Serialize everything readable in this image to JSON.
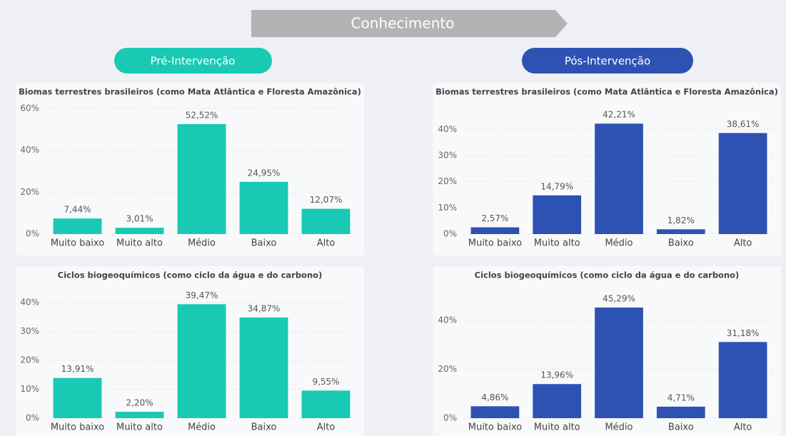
{
  "header": {
    "title": "Conhecimento",
    "pre_label": "Pré-Intervenção",
    "post_label": "Pós-Intervenção"
  },
  "chart_data": [
    {
      "type": "bar",
      "title": "Biomas terrestres brasileiros (como Mata Atlântica e Floresta Amazônica)",
      "categories": [
        "Muito baixo",
        "Muito alto",
        "Médio",
        "Baixo",
        "Alto"
      ],
      "values": [
        7.44,
        3.01,
        52.52,
        24.95,
        12.07
      ],
      "value_labels": [
        "7,44%",
        "3,01%",
        "52,52%",
        "24,95%",
        "12,07%"
      ],
      "color": "#19c9b3",
      "ylim": [
        0,
        60
      ],
      "yticks": [
        {
          "value": 0,
          "label": "0%"
        },
        {
          "value": 20,
          "label": "20%"
        },
        {
          "value": 40,
          "label": "40%"
        },
        {
          "value": 60,
          "label": "60%"
        }
      ],
      "grid": true
    },
    {
      "type": "bar",
      "title": "Biomas terrestres brasileiros (como Mata Atlântica e Floresta Amazônica)",
      "categories": [
        "Muito baixo",
        "Muito alto",
        "Médio",
        "Baixo",
        "Alto"
      ],
      "values": [
        2.57,
        14.79,
        42.21,
        1.82,
        38.61
      ],
      "value_labels": [
        "2,57%",
        "14,79%",
        "42,21%",
        "1,82%",
        "38,61%"
      ],
      "color": "#2e52b3",
      "ylim": [
        0,
        48
      ],
      "yticks": [
        {
          "value": 0,
          "label": "0%"
        },
        {
          "value": 10,
          "label": "10%"
        },
        {
          "value": 20,
          "label": "20%"
        },
        {
          "value": 30,
          "label": "30%"
        },
        {
          "value": 40,
          "label": "40%"
        }
      ],
      "grid": true
    },
    {
      "type": "bar",
      "title": "Ciclos biogeoquímicos (como ciclo da água e do carbono)",
      "categories": [
        "Muito baixo",
        "Muito alto",
        "Médio",
        "Baixo",
        "Alto"
      ],
      "values": [
        13.91,
        2.2,
        39.47,
        34.87,
        9.55
      ],
      "value_labels": [
        "13,91%",
        "2,20%",
        "39,47%",
        "34,87%",
        "9,55%"
      ],
      "color": "#19c9b3",
      "ylim": [
        0,
        44
      ],
      "yticks": [
        {
          "value": 0,
          "label": "0%"
        },
        {
          "value": 10,
          "label": "10%"
        },
        {
          "value": 20,
          "label": "20%"
        },
        {
          "value": 30,
          "label": "30%"
        },
        {
          "value": 40,
          "label": "40%"
        }
      ],
      "grid": true
    },
    {
      "type": "bar",
      "title": "Ciclos biogeoquímicos (como ciclo da água e do carbono)",
      "categories": [
        "Muito baixo",
        "Muito alto",
        "Médio",
        "Baixo",
        "Alto"
      ],
      "values": [
        4.86,
        13.96,
        45.29,
        4.71,
        31.18
      ],
      "value_labels": [
        "4,86%",
        "13,96%",
        "45,29%",
        "4,71%",
        "31,18%"
      ],
      "color": "#2e52b3",
      "ylim": [
        0,
        52
      ],
      "yticks": [
        {
          "value": 0,
          "label": "0%"
        },
        {
          "value": 20,
          "label": "20%"
        },
        {
          "value": 40,
          "label": "40%"
        }
      ],
      "grid": true
    }
  ]
}
